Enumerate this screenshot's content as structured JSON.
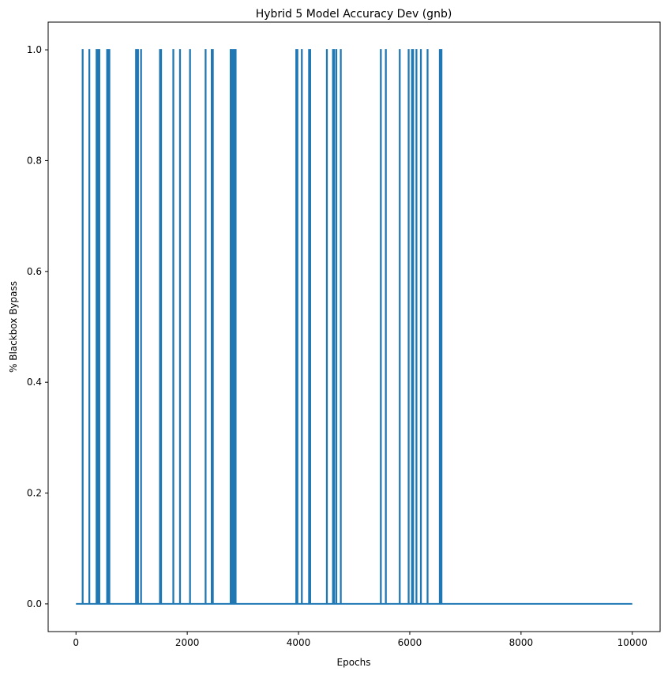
{
  "chart_data": {
    "type": "line",
    "title": "Hybrid 5 Model Accuracy Dev (gnb)",
    "xlabel": "Epochs",
    "ylabel": "% Blackbox Bypass",
    "xlim": [
      -500,
      10500
    ],
    "ylim": [
      -0.05,
      1.05
    ],
    "xticks": [
      0,
      2000,
      4000,
      6000,
      8000,
      10000
    ],
    "xtick_labels": [
      "0",
      "2000",
      "4000",
      "6000",
      "8000",
      "10000"
    ],
    "yticks": [
      0.0,
      0.2,
      0.4,
      0.6,
      0.8,
      1.0
    ],
    "ytick_labels": [
      "0.0",
      "0.2",
      "0.4",
      "0.6",
      "0.8",
      "1.0"
    ],
    "grid": false,
    "color": "#1f77b4",
    "series": [
      {
        "x_range": [
          0,
          10000
        ],
        "baseline": 0,
        "spike_value": 1,
        "spike_epochs": [
          120,
          240,
          370,
          390,
          410,
          420,
          560,
          575,
          590,
          600,
          1080,
          1100,
          1115,
          1170,
          1510,
          1530,
          1750,
          1870,
          2050,
          2330,
          2440,
          2460,
          2780,
          2790,
          2800,
          2810,
          2830,
          2840,
          2860,
          2870,
          3960,
          3980,
          4060,
          4190,
          4210,
          4510,
          4620,
          4640,
          4680,
          4760,
          5480,
          5570,
          5820,
          5980,
          6040,
          6060,
          6120,
          6200,
          6320,
          6540,
          6560,
          6570
        ]
      }
    ]
  }
}
